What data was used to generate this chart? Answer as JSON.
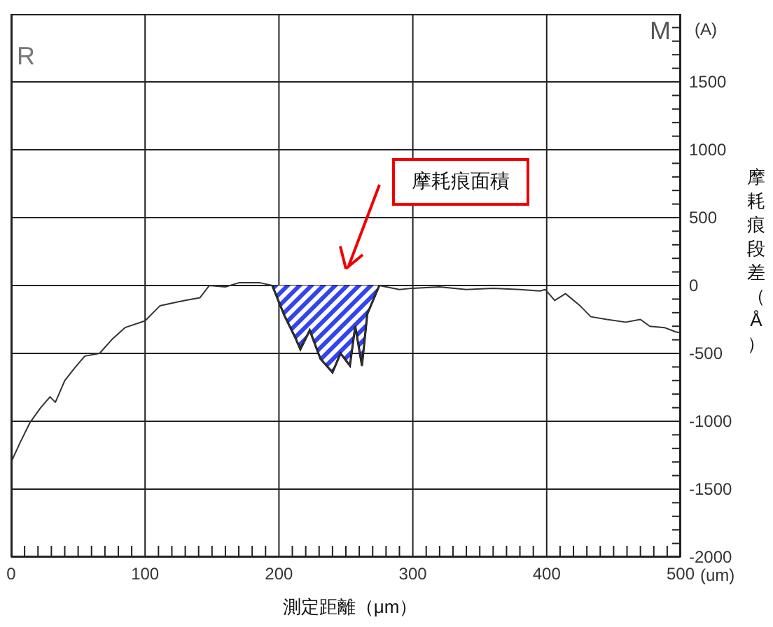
{
  "chart_data": {
    "type": "line",
    "xlabel": "測定距離（μm）",
    "ylabel": "摩耗痕段差（Å）",
    "annotations": [
      "摩耗痕面積",
      "(A)",
      "R",
      "M",
      "(um)"
    ],
    "xlim": [
      0,
      500
    ],
    "ylim": [
      -2000,
      2000
    ],
    "xticks": [
      0,
      {
        "value": 10,
        "label": null
      },
      {
        "value": 20,
        "label": null
      },
      {
        "value": 30,
        "label": null
      },
      {
        "value": 40,
        "label": null
      },
      {
        "value": 50,
        "label": null
      },
      {
        "value": 60,
        "label": null
      },
      {
        "value": 70,
        "label": null
      },
      {
        "value": 80,
        "label": null
      },
      {
        "value": 90,
        "label": null
      },
      100,
      {
        "value": 110,
        "label": null
      },
      {
        "value": 120,
        "label": null
      },
      {
        "value": 130,
        "label": null
      },
      {
        "value": 140,
        "label": null
      },
      {
        "value": 150,
        "label": null
      },
      {
        "value": 160,
        "label": null
      },
      {
        "value": 170,
        "label": null
      },
      {
        "value": 180,
        "label": null
      },
      {
        "value": 190,
        "label": null
      },
      200,
      {
        "value": 210,
        "label": null
      },
      {
        "value": 220,
        "label": null
      },
      {
        "value": 230,
        "label": null
      },
      {
        "value": 240,
        "label": null
      },
      {
        "value": 250,
        "label": null
      },
      {
        "value": 260,
        "label": null
      },
      {
        "value": 270,
        "label": null
      },
      {
        "value": 280,
        "label": null
      },
      {
        "value": 290,
        "label": null
      },
      300,
      {
        "value": 310,
        "label": null
      },
      {
        "value": 320,
        "label": null
      },
      {
        "value": 330,
        "label": null
      },
      {
        "value": 340,
        "label": null
      },
      {
        "value": 350,
        "label": null
      },
      {
        "value": 360,
        "label": null
      },
      {
        "value": 370,
        "label": null
      },
      {
        "value": 380,
        "label": null
      },
      {
        "value": 390,
        "label": null
      },
      400,
      {
        "value": 410,
        "label": null
      },
      {
        "value": 420,
        "label": null
      },
      {
        "value": 430,
        "label": null
      },
      {
        "value": 440,
        "label": null
      },
      {
        "value": 450,
        "label": null
      },
      {
        "value": 460,
        "label": null
      },
      {
        "value": 470,
        "label": null
      },
      {
        "value": 480,
        "label": null
      },
      {
        "value": 490,
        "label": null
      },
      500
    ],
    "yticks": [
      -2000,
      {
        "value": -1900,
        "label": null
      },
      {
        "value": -1800,
        "label": null
      },
      {
        "value": -1700,
        "label": null
      },
      {
        "value": -1600,
        "label": null
      },
      -1500,
      {
        "value": -1400,
        "label": null
      },
      {
        "value": -1300,
        "label": null
      },
      {
        "value": -1200,
        "label": null
      },
      {
        "value": -1100,
        "label": null
      },
      -1000,
      {
        "value": -900,
        "label": null
      },
      {
        "value": -800,
        "label": null
      },
      {
        "value": -700,
        "label": null
      },
      {
        "value": -600,
        "label": null
      },
      -500,
      {
        "value": -400,
        "label": null
      },
      {
        "value": -300,
        "label": null
      },
      {
        "value": -200,
        "label": null
      },
      {
        "value": -100,
        "label": null
      },
      0,
      {
        "value": 100,
        "label": null
      },
      {
        "value": 200,
        "label": null
      },
      {
        "value": 300,
        "label": null
      },
      {
        "value": 400,
        "label": null
      },
      500,
      {
        "value": 600,
        "label": null
      },
      {
        "value": 700,
        "label": null
      },
      {
        "value": 800,
        "label": null
      },
      {
        "value": 900,
        "label": null
      },
      1000,
      {
        "value": 1100,
        "label": null
      },
      {
        "value": 1200,
        "label": null
      },
      {
        "value": 1300,
        "label": null
      },
      {
        "value": 1400,
        "label": null
      },
      1500,
      {
        "value": 1600,
        "label": null
      },
      {
        "value": 1700,
        "label": null
      },
      {
        "value": 1800,
        "label": null
      },
      {
        "value": 1900,
        "label": null
      }
    ],
    "grid": true,
    "series": [
      {
        "color": "#333333",
        "x": [
          0,
          7,
          14,
          22,
          29,
          33,
          40,
          48,
          55,
          66,
          75,
          85,
          100,
          111,
          120,
          130,
          141,
          148,
          160,
          170,
          186,
          195,
          204,
          212,
          216,
          223,
          231,
          240,
          246,
          253,
          257,
          262,
          266,
          275,
          290,
          300,
          320,
          340,
          360,
          380,
          395,
          399,
          406,
          414,
          425,
          433,
          445,
          459,
          470,
          477,
          488,
          496,
          500
        ],
        "values": [
          -1300,
          -1150,
          -1010,
          -900,
          -820,
          -860,
          -700,
          -600,
          -520,
          -500,
          -400,
          -310,
          -260,
          -150,
          -130,
          -110,
          -90,
          0,
          -10,
          20,
          20,
          0,
          -220,
          -380,
          -470,
          -330,
          -540,
          -640,
          -500,
          -590,
          -300,
          -590,
          -210,
          0,
          -30,
          -20,
          -10,
          -30,
          -20,
          -30,
          -40,
          -30,
          -110,
          -60,
          -150,
          -230,
          -250,
          -270,
          -250,
          -300,
          -310,
          -340,
          -350
        ]
      },
      {
        "type": "area",
        "color": "#3344ee",
        "x": [
          195,
          204,
          212,
          216,
          223,
          231,
          240,
          246,
          253,
          257,
          262,
          266,
          275
        ],
        "values": [
          0,
          -220,
          -380,
          -470,
          -330,
          -540,
          -640,
          -500,
          -590,
          -300,
          -590,
          -210,
          0
        ]
      }
    ]
  }
}
